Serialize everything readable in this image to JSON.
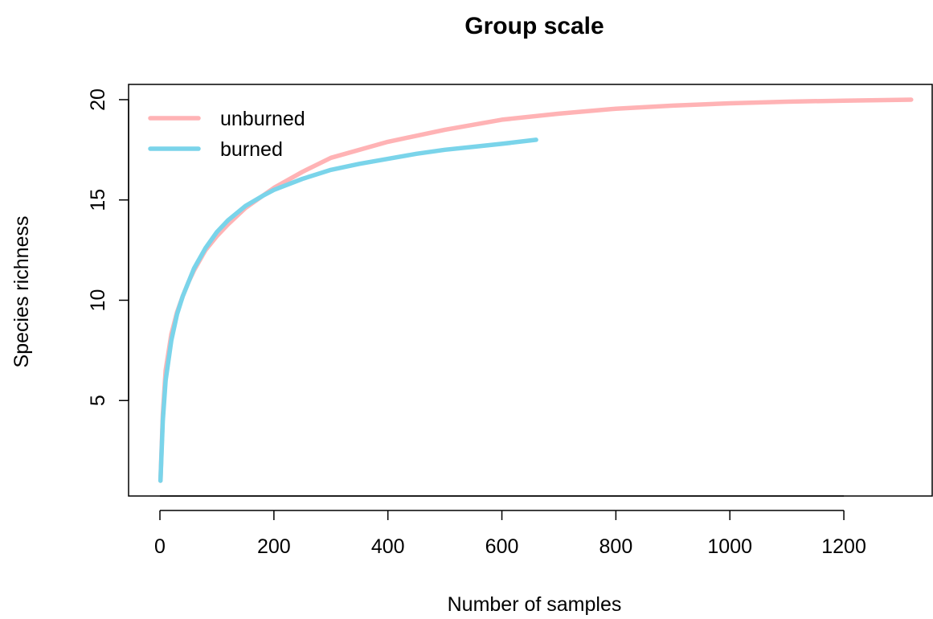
{
  "chart_data": {
    "type": "line",
    "title": "Group scale",
    "xlabel": "Number of samples",
    "ylabel": "Species richness",
    "xlim": [
      -55,
      1355
    ],
    "ylim": [
      0.24,
      20.76
    ],
    "x_ticks": [
      0,
      200,
      400,
      600,
      800,
      1000,
      1200
    ],
    "y_ticks": [
      5,
      10,
      15,
      20
    ],
    "grid": false,
    "legend_position": "top-left",
    "series": [
      {
        "name": "unburned",
        "color": "#FFB3B5",
        "x": [
          1,
          5,
          10,
          20,
          30,
          40,
          50,
          60,
          80,
          100,
          120,
          150,
          200,
          250,
          300,
          400,
          500,
          600,
          700,
          800,
          900,
          1000,
          1100,
          1200,
          1318
        ],
        "y": [
          1,
          4.3,
          6.5,
          8.3,
          9.4,
          10.2,
          10.9,
          11.5,
          12.5,
          13.2,
          13.8,
          14.6,
          15.6,
          16.4,
          17.1,
          17.9,
          18.5,
          19.0,
          19.3,
          19.55,
          19.7,
          19.82,
          19.9,
          19.95,
          20
        ]
      },
      {
        "name": "burned",
        "color": "#7AD4EA",
        "x": [
          1,
          5,
          10,
          20,
          30,
          40,
          50,
          60,
          80,
          100,
          120,
          150,
          180,
          200,
          250,
          300,
          350,
          400,
          450,
          500,
          550,
          600,
          660
        ],
        "y": [
          1,
          4.0,
          6.0,
          8.0,
          9.3,
          10.2,
          10.9,
          11.6,
          12.6,
          13.4,
          14.0,
          14.7,
          15.2,
          15.5,
          16.05,
          16.5,
          16.8,
          17.05,
          17.3,
          17.5,
          17.65,
          17.8,
          18
        ]
      }
    ]
  }
}
